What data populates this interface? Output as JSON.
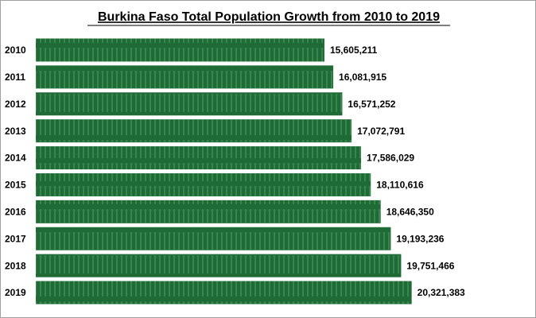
{
  "chart_data": {
    "type": "bar",
    "orientation": "horizontal",
    "title": "Burkina Faso Total Population Growth from 2010 to 2019",
    "categories": [
      "2010",
      "2011",
      "2012",
      "2013",
      "2014",
      "2015",
      "2016",
      "2017",
      "2018",
      "2019"
    ],
    "values": [
      15605211,
      16081915,
      16571252,
      17072791,
      17586029,
      18110616,
      18646350,
      19193236,
      19751466,
      20321383
    ],
    "value_labels": [
      "15,605,211",
      "16,081,915",
      "16,571,252",
      "17,072,791",
      "17,586,029",
      "18,110,616",
      "18,646,350",
      "19,193,236",
      "19,751,466",
      "20,321,383"
    ],
    "color": "#1f6b35",
    "xlim": [
      0,
      27000000
    ]
  }
}
